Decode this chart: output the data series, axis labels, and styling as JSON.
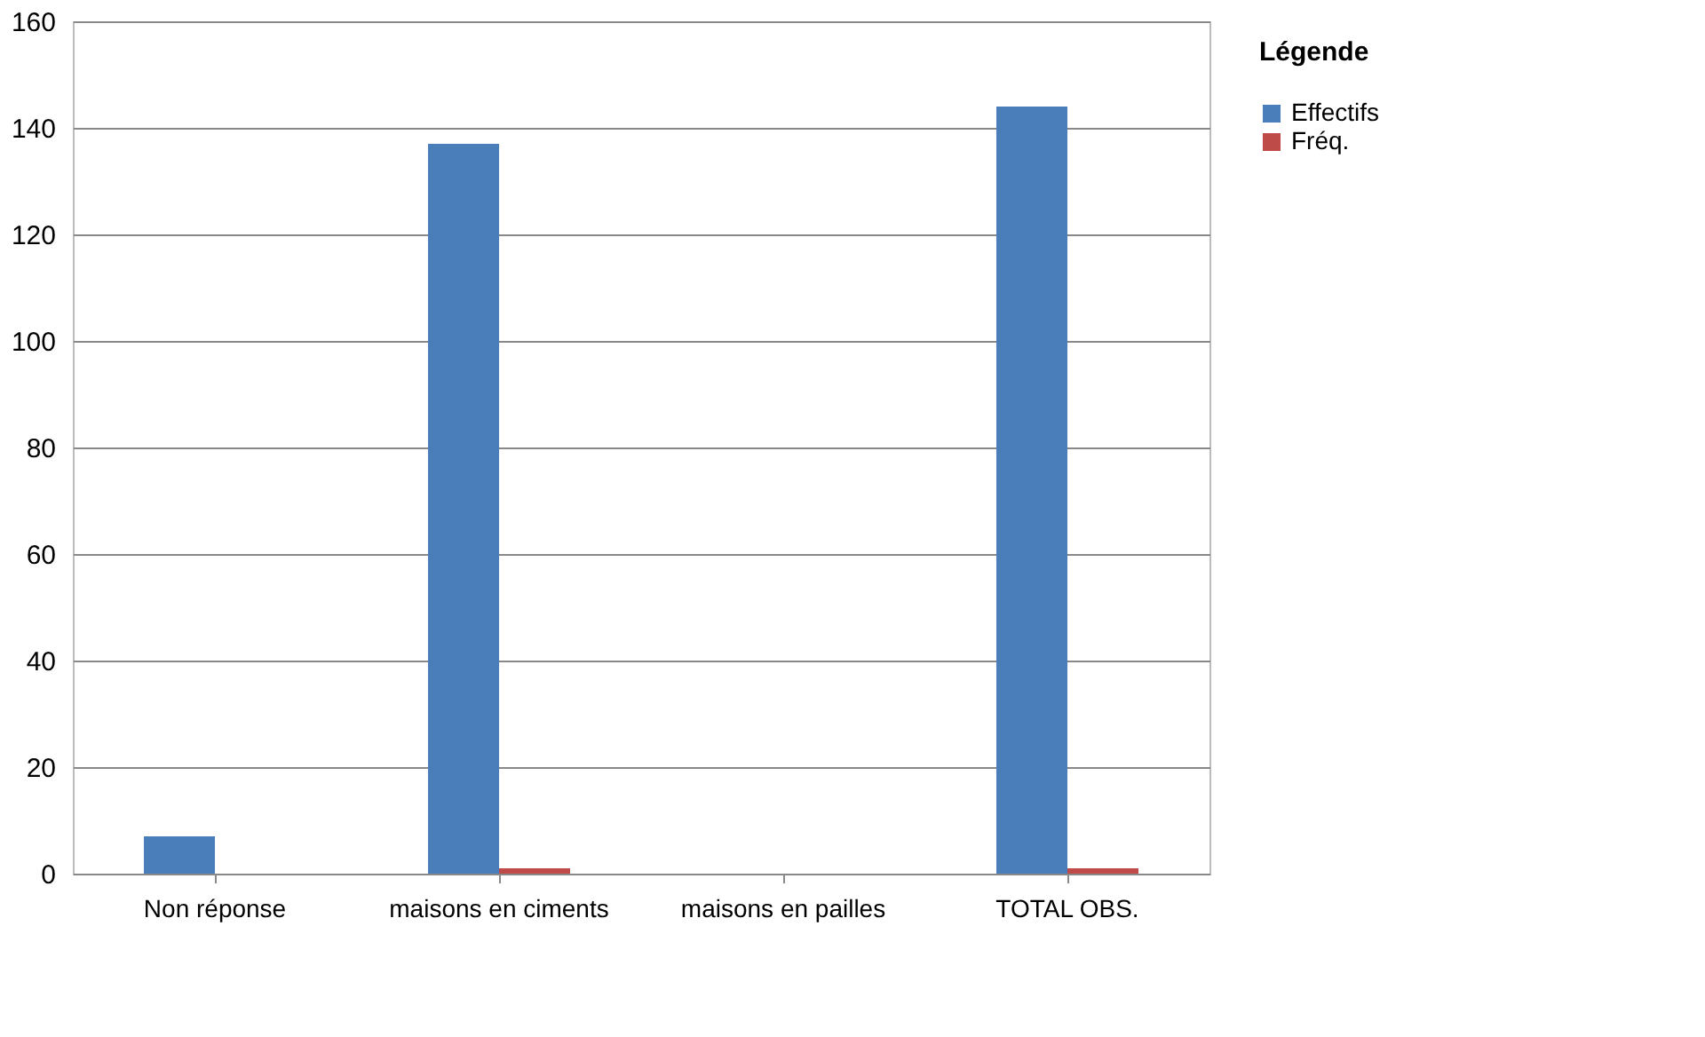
{
  "chart_data": {
    "type": "bar",
    "categories": [
      "Non réponse",
      "maisons en ciments",
      "maisons en pailles",
      "TOTAL OBS."
    ],
    "series": [
      {
        "name": "Effectifs",
        "color": "#4a7ebb",
        "values": [
          7,
          137,
          0,
          144
        ]
      },
      {
        "name": "Fréq.",
        "color": "#be4b48",
        "values": [
          0,
          1,
          0,
          1
        ]
      }
    ],
    "legend_title": "Légende",
    "legend": "right",
    "ylim": [
      0,
      160
    ],
    "yticks": [
      0,
      20,
      40,
      60,
      80,
      100,
      120,
      140,
      160
    ],
    "grid": "y"
  }
}
